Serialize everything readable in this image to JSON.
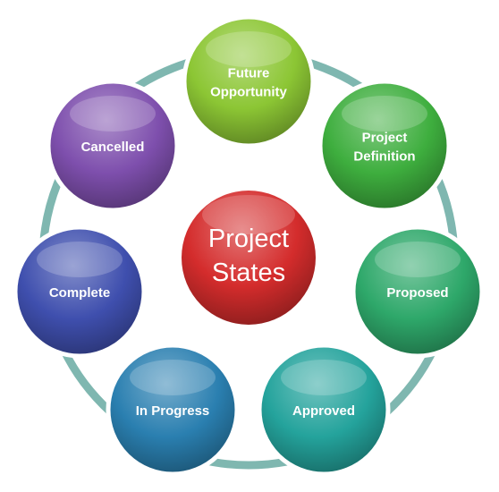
{
  "center": {
    "lines": [
      "Project",
      "States"
    ],
    "color": "#d42c2c"
  },
  "states": [
    {
      "lines": [
        "Future",
        "Opportunity"
      ],
      "color": "#8cc634"
    },
    {
      "lines": [
        "Project",
        "Definition"
      ],
      "color": "#3eae3e"
    },
    {
      "lines": [
        "Proposed"
      ],
      "color": "#2ea86a"
    },
    {
      "lines": [
        "Approved"
      ],
      "color": "#24a39c"
    },
    {
      "lines": [
        "In Progress"
      ],
      "color": "#2a7fb0"
    },
    {
      "lines": [
        "Complete"
      ],
      "color": "#3f4fae"
    },
    {
      "lines": [
        "Cancelled"
      ],
      "color": "#7e4fad"
    }
  ],
  "ring_color": "#7fb7b0"
}
